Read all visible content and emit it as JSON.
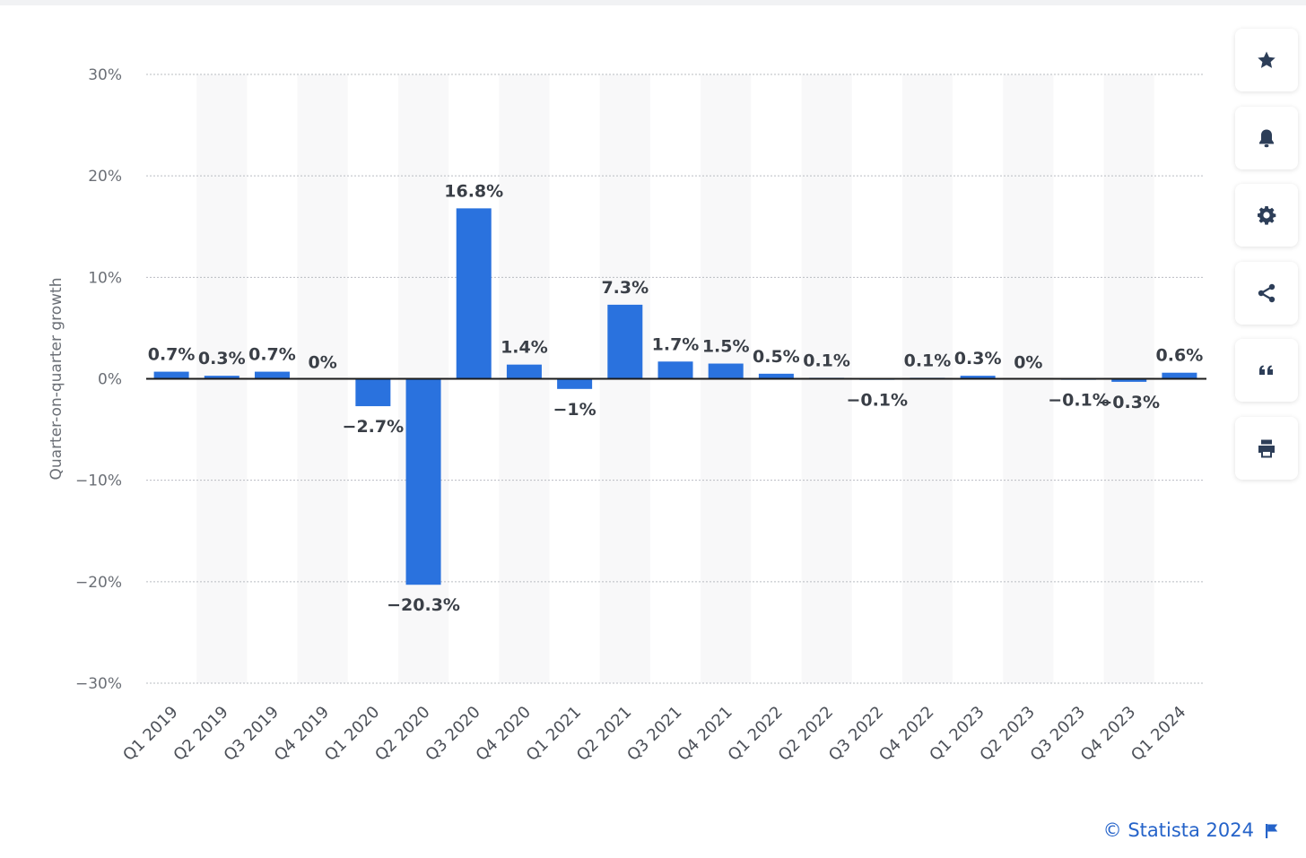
{
  "chart_data": {
    "type": "bar",
    "categories": [
      "Q1 2019",
      "Q2 2019",
      "Q3 2019",
      "Q4 2019",
      "Q1 2020",
      "Q2 2020",
      "Q3 2020",
      "Q4 2020",
      "Q1 2021",
      "Q2 2021",
      "Q3 2021",
      "Q4 2021",
      "Q1 2022",
      "Q2 2022",
      "Q3 2022",
      "Q4 2022",
      "Q1 2023",
      "Q2 2023",
      "Q3 2023",
      "Q4 2023",
      "Q1 2024"
    ],
    "values": [
      0.7,
      0.3,
      0.7,
      0,
      -2.7,
      -20.3,
      16.8,
      1.4,
      -1,
      7.3,
      1.7,
      1.5,
      0.5,
      0.1,
      -0.1,
      0.1,
      0.3,
      0,
      -0.1,
      -0.3,
      0.6
    ],
    "data_labels": [
      "0.7%",
      "0.3%",
      "0.7%",
      "0%",
      "−2.7%",
      "−20.3%",
      "16.8%",
      "1.4%",
      "−1%",
      "7.3%",
      "1.7%",
      "1.5%",
      "0.5%",
      "0.1%",
      "−0.1%",
      "0.1%",
      "0.3%",
      "0%",
      "−0.1%",
      "−0.3%",
      "0.6%"
    ],
    "ylabel": "Quarter-on-quarter growth",
    "ylim": [
      -30,
      30
    ],
    "yticks": [
      30,
      20,
      10,
      0,
      -10,
      -20,
      -30
    ],
    "ytick_labels": [
      "30%",
      "20%",
      "10%",
      "0%",
      "−10%",
      "−20%",
      "−30%"
    ],
    "grid": true,
    "bar_color": "#2a72de",
    "legend": "none"
  },
  "toolbar": {
    "items": [
      {
        "name": "favorite-button",
        "icon": "star-icon"
      },
      {
        "name": "notification-button",
        "icon": "bell-icon"
      },
      {
        "name": "settings-button",
        "icon": "gear-icon"
      },
      {
        "name": "share-button",
        "icon": "share-icon"
      },
      {
        "name": "cite-button",
        "icon": "quote-icon"
      },
      {
        "name": "print-button",
        "icon": "printer-icon"
      }
    ]
  },
  "footer": {
    "credit": "© Statista 2024"
  },
  "colors": {
    "accent": "#2563c9",
    "icon": "#2d3e58"
  }
}
